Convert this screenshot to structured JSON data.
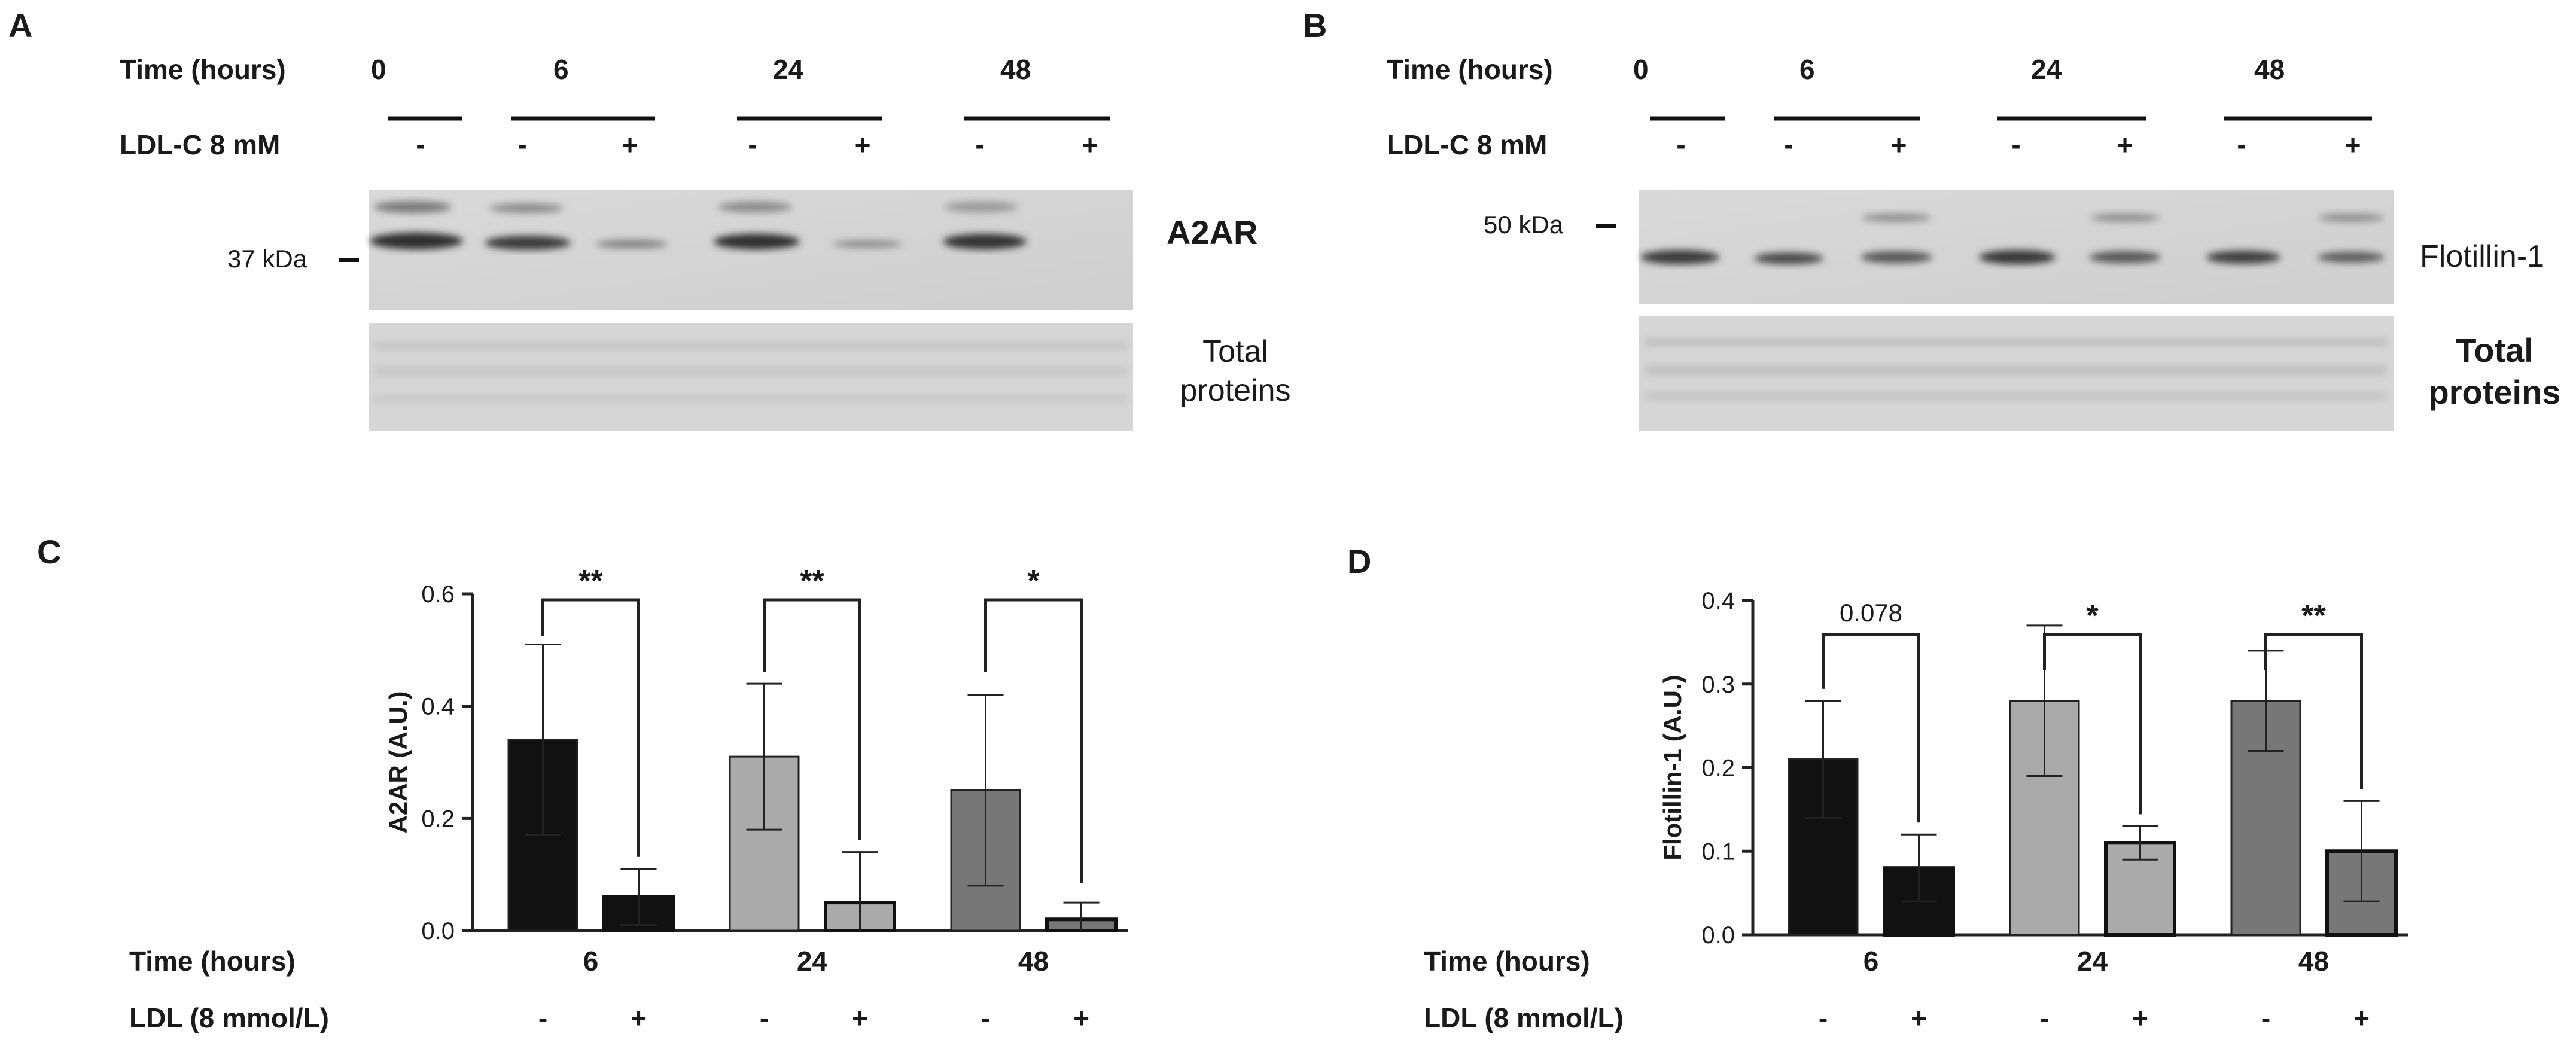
{
  "panelA": {
    "letter": "A",
    "time_label": "Time (hours)",
    "time_values": [
      "0",
      "6",
      "24",
      "48"
    ],
    "ldl_label": "LDL-C 8 mM",
    "signs": [
      "-",
      "-",
      "+",
      "-",
      "+",
      "-",
      "+"
    ],
    "marker": "37 kDa",
    "band_label": "A2AR",
    "total_label_line1": "Total",
    "total_label_line2": "proteins"
  },
  "panelB": {
    "letter": "B",
    "time_label": "Time (hours)",
    "time_values": [
      "0",
      "6",
      "24",
      "48"
    ],
    "ldl_label": "LDL-C 8 mM",
    "signs": [
      "-",
      "-",
      "+",
      "-",
      "+",
      "-",
      "+"
    ],
    "marker": "50 kDa",
    "band_label": "Flotillin-1",
    "total_label_line1": "Total",
    "total_label_line2": "proteins"
  },
  "chart_data": [
    {
      "panel": "C",
      "type": "bar",
      "ylabel": "A2AR (A.U.)",
      "ylim": [
        0,
        0.6
      ],
      "yticks": [
        "0.0",
        "0.2",
        "0.4",
        "0.6"
      ],
      "xlabel_row1": "Time (hours)",
      "xlabel_row2": "LDL (8 mmol/L)",
      "categories": [
        "6",
        "24",
        "48"
      ],
      "series": [
        {
          "values": [
            0.34,
            0.31,
            0.25
          ],
          "errors": [
            0.17,
            0.13,
            0.17
          ],
          "signs": [
            "-",
            "-",
            "-"
          ]
        },
        {
          "values": [
            0.06,
            0.05,
            0.02
          ],
          "errors": [
            0.05,
            0.09,
            0.03
          ],
          "signs": [
            "+",
            "+",
            "+"
          ]
        }
      ],
      "colors": [
        "#111111",
        "#aaaaaa",
        "#777777"
      ],
      "significance": [
        "**",
        "**",
        "*"
      ]
    },
    {
      "panel": "D",
      "type": "bar",
      "ylabel": "Flotillin-1 (A.U.)",
      "ylim": [
        0,
        0.4
      ],
      "yticks": [
        "0.0",
        "0.1",
        "0.2",
        "0.3",
        "0.4"
      ],
      "xlabel_row1": "Time (hours)",
      "xlabel_row2": "LDL (8 mmol/L)",
      "categories": [
        "6",
        "24",
        "48"
      ],
      "series": [
        {
          "values": [
            0.21,
            0.28,
            0.28
          ],
          "errors": [
            0.07,
            0.09,
            0.06
          ],
          "signs": [
            "-",
            "-",
            "-"
          ]
        },
        {
          "values": [
            0.08,
            0.11,
            0.1
          ],
          "errors": [
            0.04,
            0.02,
            0.06
          ],
          "signs": [
            "+",
            "+",
            "+"
          ]
        }
      ],
      "colors": [
        "#111111",
        "#aaaaaa",
        "#777777"
      ],
      "significance": [
        "0.078",
        "*",
        "**"
      ]
    }
  ]
}
